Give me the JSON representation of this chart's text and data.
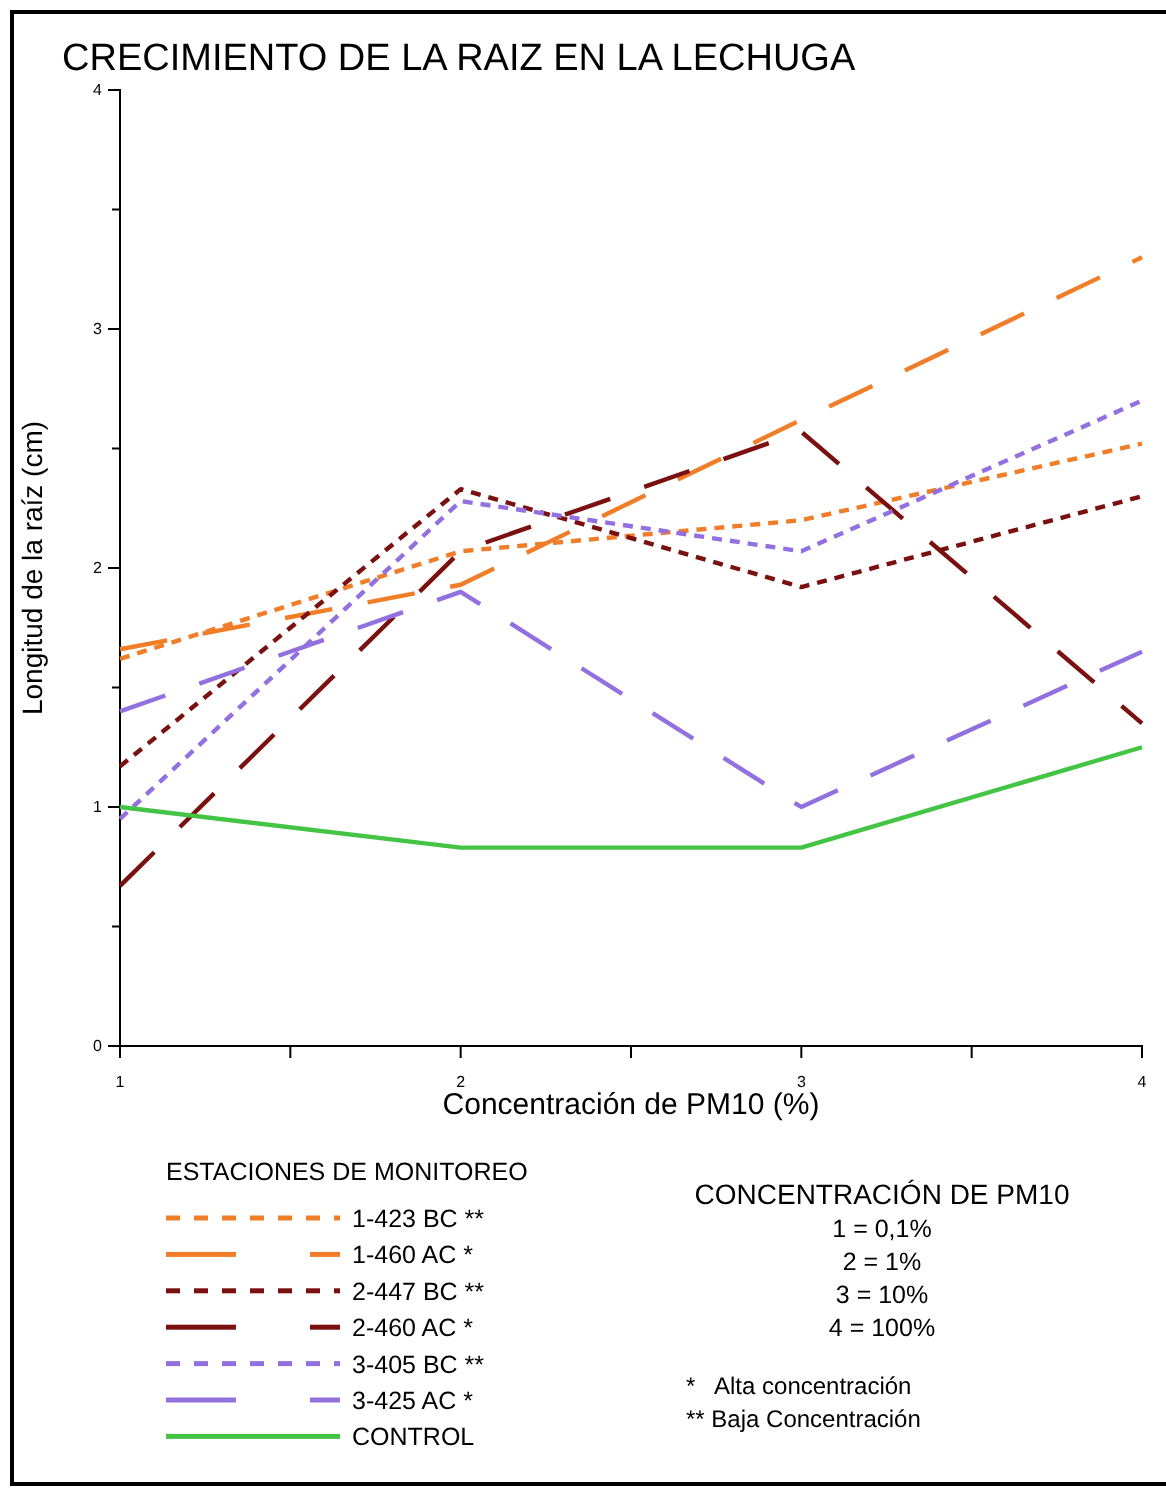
{
  "chart_data": {
    "type": "line",
    "title": "CRECIMIENTO DE LA RAIZ EN LA LECHUGA",
    "xlabel": "Concentración de PM10 (%)",
    "ylabel": "Longitud de la raíz (cm)",
    "legend_title": "ESTACIONES DE MONITOREO",
    "legend": "bottom left",
    "x": [
      1,
      2,
      3,
      4
    ],
    "xlim": [
      1,
      4
    ],
    "xticks": [
      1,
      {
        "value": 1.5,
        "label": null
      },
      2,
      {
        "value": 2.5,
        "label": null
      },
      3,
      {
        "value": 3.5,
        "label": null
      },
      4
    ],
    "ylim": [
      0,
      4
    ],
    "yticks": [
      0,
      {
        "value": 0.5,
        "label": null
      },
      1,
      {
        "value": 1.5,
        "label": null
      },
      2,
      {
        "value": 2.5,
        "label": null
      },
      3,
      {
        "value": 3.5,
        "label": null
      },
      4
    ],
    "grid": false,
    "marker": "none",
    "series": [
      {
        "name": "1-423 BC **",
        "color": "#f07d28",
        "line_style": "dotted",
        "values": [
          1.62,
          2.07,
          2.2,
          2.52
        ]
      },
      {
        "name": "1-460 AC *",
        "color": "#f07d28",
        "line_style": "dashed",
        "values": [
          1.66,
          1.93,
          2.62,
          3.3
        ]
      },
      {
        "name": "2-447 BC **",
        "color": "#7a1010",
        "line_style": "dotted",
        "values": [
          1.17,
          2.33,
          1.92,
          2.3
        ]
      },
      {
        "name": "2-460 AC *",
        "color": "#7a1010",
        "line_style": "dashed",
        "values": [
          0.67,
          2.07,
          2.57,
          1.35
        ]
      },
      {
        "name": "3-405 BC **",
        "color": "#9370e0",
        "line_style": "dotted",
        "values": [
          0.95,
          2.28,
          2.07,
          2.7
        ]
      },
      {
        "name": "3-425 AC *",
        "color": "#9370e0",
        "line_style": "dashed",
        "values": [
          1.4,
          1.9,
          1.0,
          1.65
        ]
      },
      {
        "name": "CONTROL",
        "color": "#44c444",
        "line_style": "solid",
        "values": [
          1.0,
          0.83,
          0.83,
          1.25
        ]
      }
    ],
    "annotations": [
      "CONCENTRACIÓN DE PM10",
      "1 = 0,1%",
      "2 = 1%",
      "3 = 10%",
      "4 = 100%",
      "*   Alta concentración",
      "** Baja Concentración"
    ]
  }
}
